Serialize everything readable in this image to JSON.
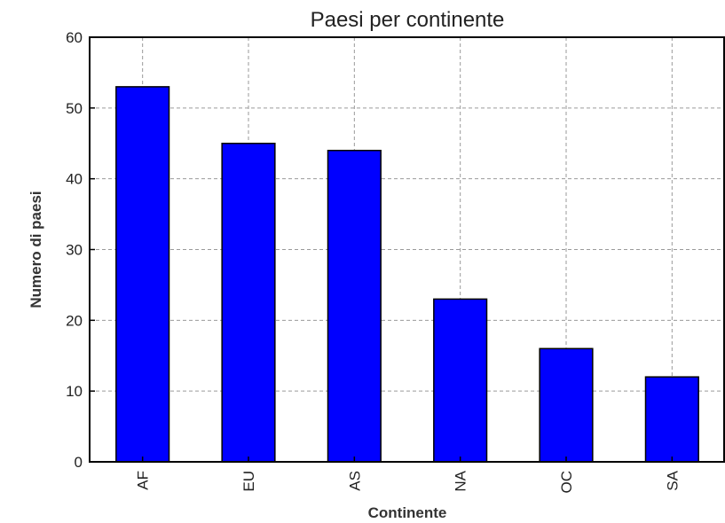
{
  "chart_data": {
    "type": "bar",
    "title": "Paesi per continente",
    "xlabel": "Continente",
    "ylabel": "Numero di paesi",
    "categories": [
      "AF",
      "EU",
      "AS",
      "NA",
      "OC",
      "SA"
    ],
    "values": [
      53,
      45,
      44,
      23,
      16,
      12
    ],
    "ylim": [
      0,
      60
    ],
    "yticks": [
      "0",
      "10",
      "20",
      "30",
      "40",
      "50",
      "60"
    ],
    "grid": true,
    "bar_color": "#0000ff",
    "legend": null
  }
}
